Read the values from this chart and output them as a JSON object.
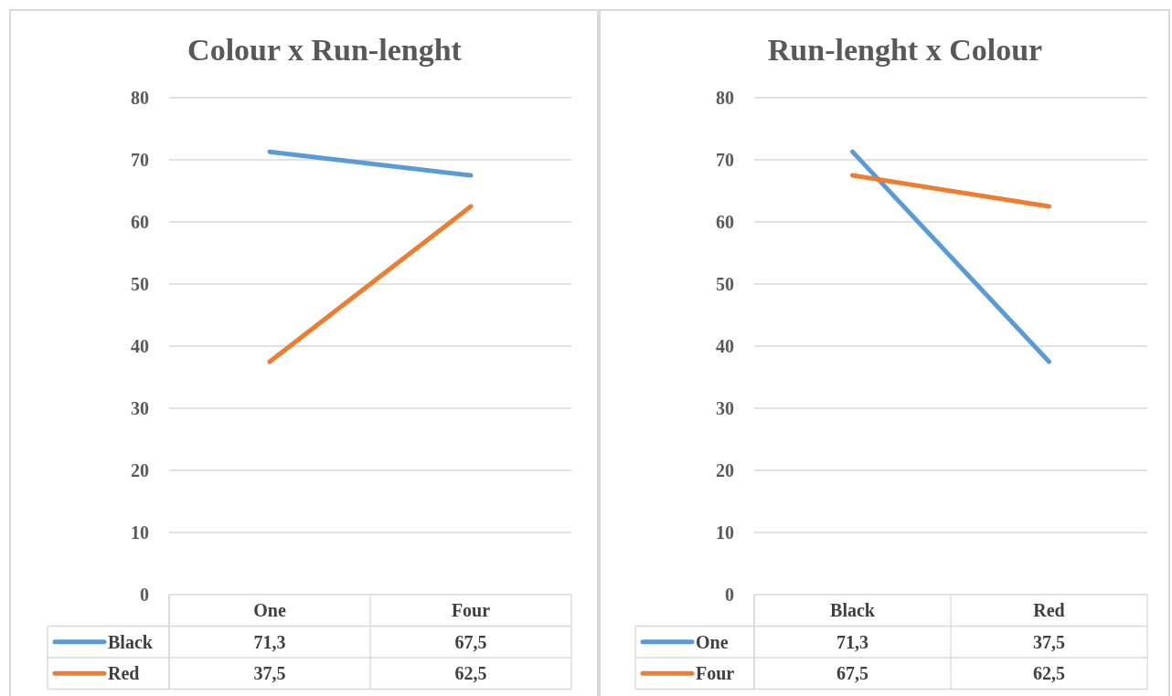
{
  "chart_data": [
    {
      "type": "line",
      "title": "Colour x Run-lenght",
      "categories": [
        "One",
        "Four"
      ],
      "series": [
        {
          "name": "Black",
          "color": "#5b9bd5",
          "values": [
            71.3,
            67.5
          ],
          "value_labels": [
            "71,3",
            "67,5"
          ]
        },
        {
          "name": "Red",
          "color": "#ed7d31",
          "values": [
            37.5,
            62.5
          ],
          "value_labels": [
            "37,5",
            "62,5"
          ]
        }
      ],
      "ylim": [
        0,
        80
      ],
      "yticks": [
        0,
        10,
        20,
        30,
        40,
        50,
        60,
        70,
        80
      ],
      "grid": "y",
      "legend": "bottom",
      "marker": "none",
      "line_style": "solid"
    },
    {
      "type": "line",
      "title": "Run-lenght x Colour",
      "categories": [
        "Black",
        "Red"
      ],
      "series": [
        {
          "name": "One",
          "color": "#5b9bd5",
          "values": [
            71.3,
            37.5
          ],
          "value_labels": [
            "71,3",
            "37,5"
          ]
        },
        {
          "name": "Four",
          "color": "#ed7d31",
          "values": [
            67.5,
            62.5
          ],
          "value_labels": [
            "67,5",
            "62,5"
          ]
        }
      ],
      "ylim": [
        0,
        80
      ],
      "yticks": [
        0,
        10,
        20,
        30,
        40,
        50,
        60,
        70,
        80
      ],
      "grid": "y",
      "legend": "bottom",
      "marker": "none",
      "line_style": "solid"
    }
  ]
}
